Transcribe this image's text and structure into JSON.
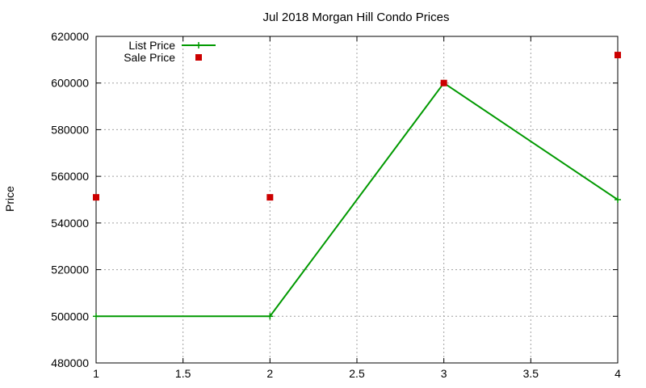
{
  "chart_data": {
    "type": "line",
    "title": "Jul 2018 Morgan Hill Condo Prices",
    "xlabel": "",
    "ylabel": "Price",
    "xlim": [
      1,
      4
    ],
    "ylim": [
      480000,
      620000
    ],
    "xticks": [
      "1",
      "1.5",
      "2",
      "2.5",
      "3",
      "3.5",
      "4"
    ],
    "yticks": [
      "480000",
      "500000",
      "520000",
      "540000",
      "560000",
      "580000",
      "600000",
      "620000"
    ],
    "grid": true,
    "legend_position": "top-left",
    "series": [
      {
        "name": "List Price",
        "style": "line-plus",
        "color": "#009900",
        "x": [
          1,
          2,
          3,
          4
        ],
        "y": [
          500000,
          500000,
          600000,
          550000
        ]
      },
      {
        "name": "Sale Price",
        "style": "square-points",
        "color": "#cc0000",
        "x": [
          1,
          2,
          3,
          4
        ],
        "y": [
          551000,
          551000,
          600000,
          612000
        ]
      }
    ]
  }
}
